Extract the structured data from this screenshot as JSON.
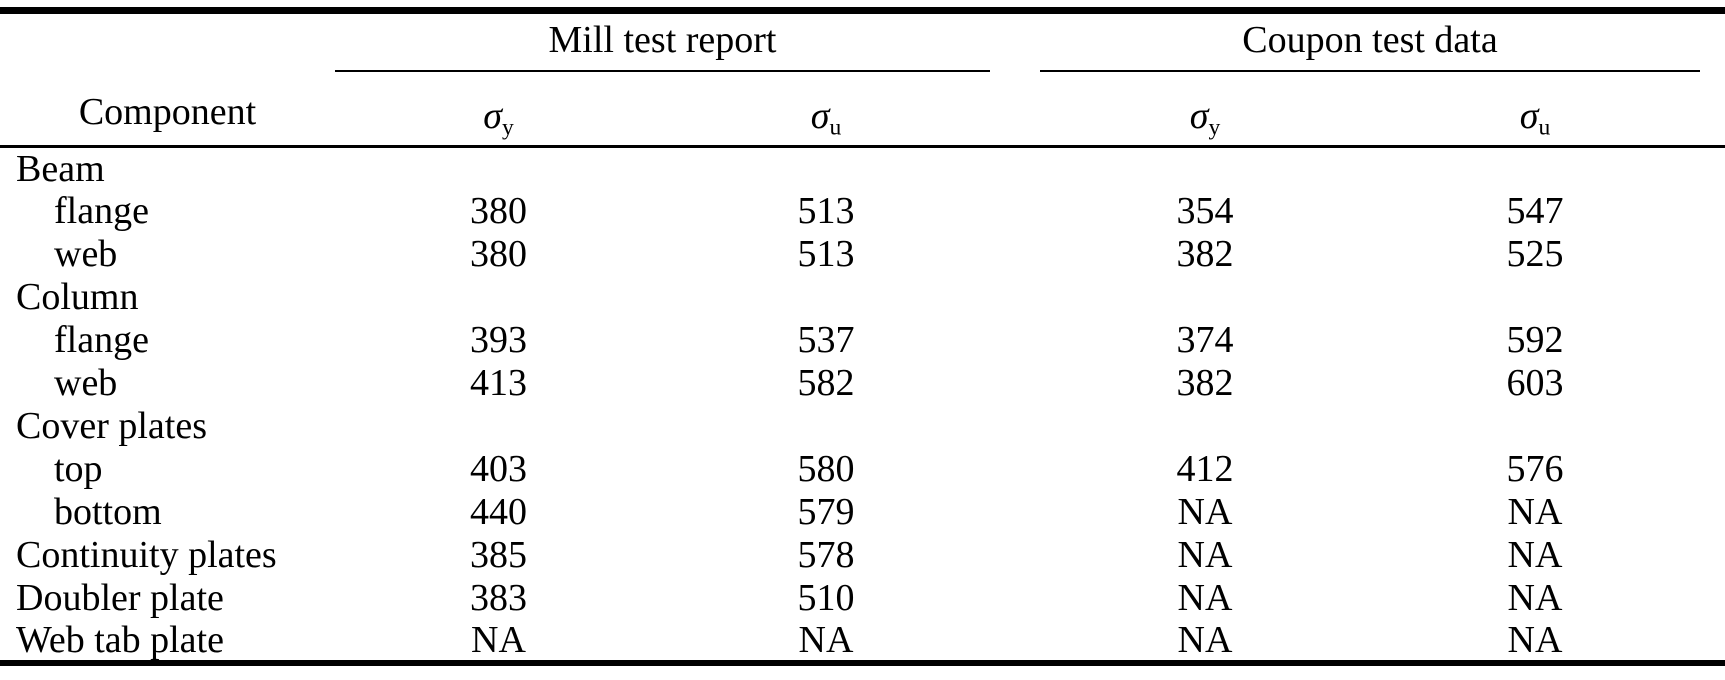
{
  "table": {
    "component_header": "Component",
    "groups": [
      {
        "title": "Mill test report"
      },
      {
        "title": "Coupon test data"
      }
    ],
    "sigma": {
      "symbol": "σ",
      "sub_y": "y",
      "sub_u": "u"
    },
    "rows": [
      {
        "component": "Beam",
        "cells": [
          "",
          "",
          "",
          ""
        ]
      },
      {
        "component": "flange",
        "cells": [
          "380",
          "513",
          "354",
          "547"
        ]
      },
      {
        "component": "web",
        "cells": [
          "380",
          "513",
          "382",
          "525"
        ]
      },
      {
        "component": "Column",
        "cells": [
          "",
          "",
          "",
          ""
        ]
      },
      {
        "component": "flange",
        "cells": [
          "393",
          "537",
          "374",
          "592"
        ]
      },
      {
        "component": "web",
        "cells": [
          "413",
          "582",
          "382",
          "603"
        ]
      },
      {
        "component": "Cover plates",
        "cells": [
          "",
          "",
          "",
          ""
        ]
      },
      {
        "component": "top",
        "cells": [
          "403",
          "580",
          "412",
          "576"
        ]
      },
      {
        "component": "bottom",
        "cells": [
          "440",
          "579",
          "NA",
          "NA"
        ]
      },
      {
        "component": "Continuity plates",
        "cells": [
          "385",
          "578",
          "NA",
          "NA"
        ]
      },
      {
        "component": "Doubler plate",
        "cells": [
          "383",
          "510",
          "NA",
          "NA"
        ]
      },
      {
        "component": "Web tab plate",
        "cells": [
          "NA",
          "NA",
          "NA",
          "NA"
        ]
      }
    ]
  },
  "colors": {
    "text": "#000000",
    "background": "#ffffff",
    "rule": "#000000"
  }
}
